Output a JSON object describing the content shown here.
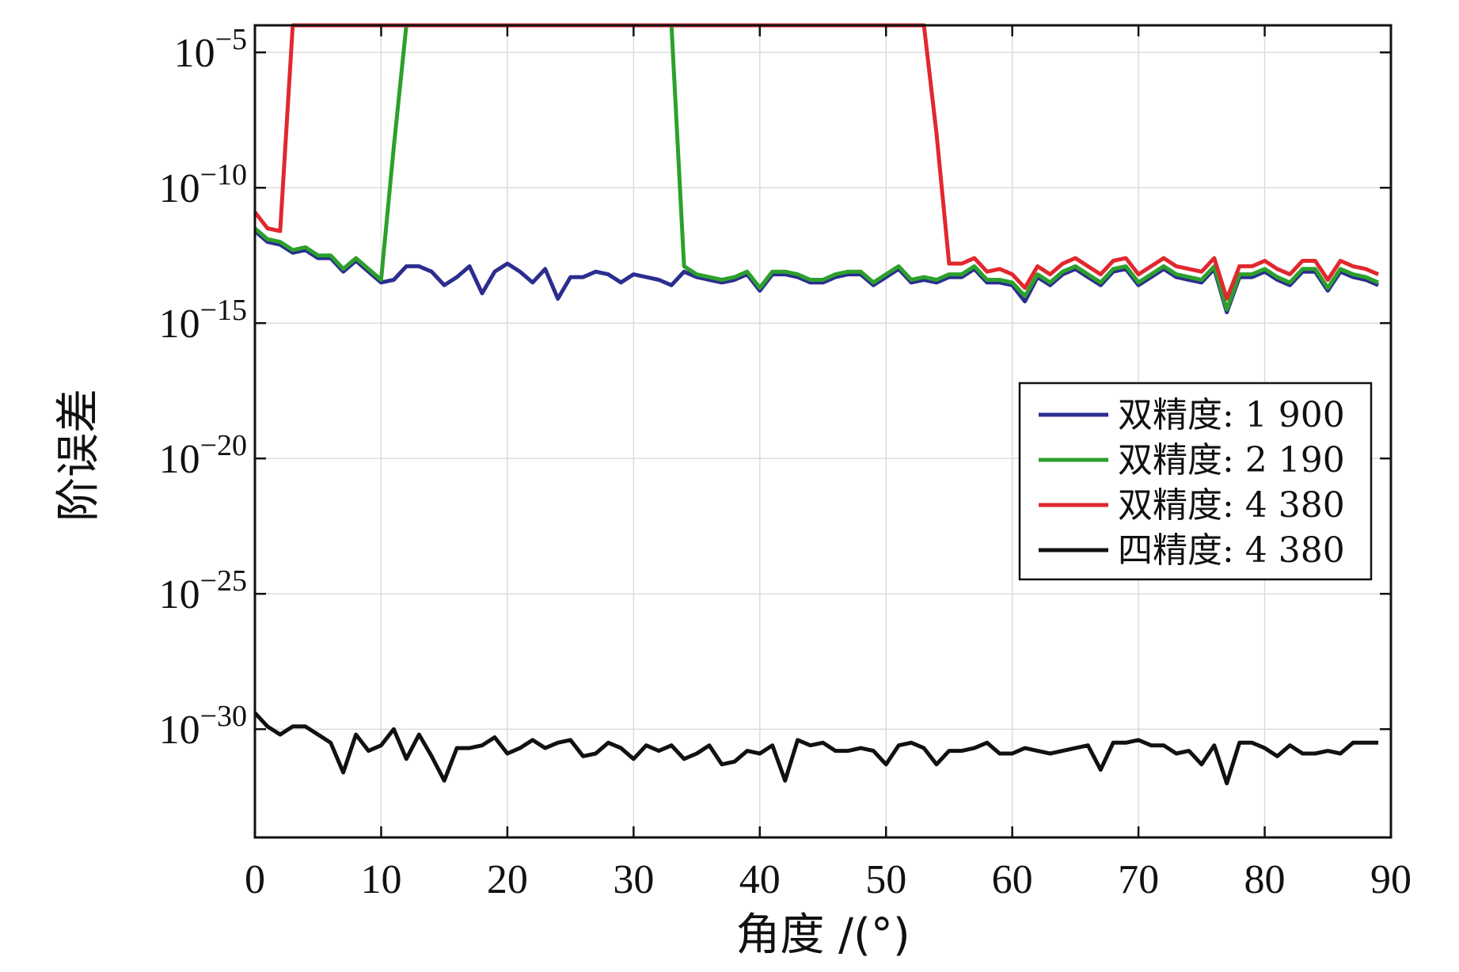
{
  "chart_data": {
    "type": "line",
    "title": "",
    "xlabel": "角度 /(°)",
    "ylabel": "阶误差",
    "xlim": [
      0,
      90
    ],
    "ylim_exp": [
      -34,
      -4
    ],
    "yscale": "log",
    "grid": true,
    "legend_position": "right-middle",
    "x_ticks": [
      0,
      10,
      20,
      30,
      40,
      50,
      60,
      70,
      80,
      90
    ],
    "y_ticks": [
      {
        "exp": -5,
        "label_base": "10",
        "label_exp": "−5"
      },
      {
        "exp": -10,
        "label_base": "10",
        "label_exp": "−10"
      },
      {
        "exp": -15,
        "label_base": "10",
        "label_exp": "−15"
      },
      {
        "exp": -20,
        "label_base": "10",
        "label_exp": "−20"
      },
      {
        "exp": -25,
        "label_base": "10",
        "label_exp": "−25"
      },
      {
        "exp": -30,
        "label_base": "10",
        "label_exp": "−30"
      }
    ],
    "x": [
      0,
      1,
      2,
      3,
      4,
      5,
      6,
      7,
      8,
      9,
      10,
      11,
      12,
      13,
      14,
      15,
      16,
      17,
      18,
      19,
      20,
      21,
      22,
      23,
      24,
      25,
      26,
      27,
      28,
      29,
      30,
      31,
      32,
      33,
      34,
      35,
      36,
      37,
      38,
      39,
      40,
      41,
      42,
      43,
      44,
      45,
      46,
      47,
      48,
      49,
      50,
      51,
      52,
      53,
      54,
      55,
      56,
      57,
      58,
      59,
      60,
      61,
      62,
      63,
      64,
      65,
      66,
      67,
      68,
      69,
      70,
      71,
      72,
      73,
      74,
      75,
      76,
      77,
      78,
      79,
      80,
      81,
      82,
      83,
      84,
      85,
      86,
      87,
      88,
      89
    ],
    "series": [
      {
        "name": "双精度: 1 900",
        "color": "#2b2d8f",
        "values_exp": [
          -11.6,
          -12.0,
          -12.1,
          -12.4,
          -12.3,
          -12.6,
          -12.6,
          -13.1,
          -12.7,
          -13.1,
          -13.5,
          -13.4,
          -12.9,
          -12.9,
          -13.1,
          -13.6,
          -13.3,
          -12.9,
          -13.9,
          -13.1,
          -12.8,
          -13.1,
          -13.5,
          -13.0,
          -14.1,
          -13.3,
          -13.3,
          -13.1,
          -13.2,
          -13.5,
          -13.2,
          -13.3,
          -13.4,
          -13.6,
          -13.1,
          -13.3,
          -13.4,
          -13.5,
          -13.4,
          -13.2,
          -13.8,
          -13.2,
          -13.2,
          -13.3,
          -13.5,
          -13.5,
          -13.3,
          -13.2,
          -13.2,
          -13.6,
          -13.3,
          -13.0,
          -13.5,
          -13.4,
          -13.5,
          -13.3,
          -13.3,
          -13.0,
          -13.5,
          -13.5,
          -13.6,
          -14.2,
          -13.3,
          -13.6,
          -13.2,
          -13.0,
          -13.3,
          -13.6,
          -13.1,
          -13.0,
          -13.6,
          -13.3,
          -13.0,
          -13.3,
          -13.4,
          -13.5,
          -13.0,
          -14.6,
          -13.3,
          -13.3,
          -13.1,
          -13.4,
          -13.6,
          -13.1,
          -13.1,
          -13.8,
          -13.1,
          -13.3,
          -13.4,
          -13.6
        ]
      },
      {
        "name": "双精度: 2 190",
        "color": "#2ca02c",
        "values_exp": [
          -11.5,
          -11.9,
          -12.0,
          -12.3,
          -12.2,
          -12.5,
          -12.5,
          -13.0,
          -12.6,
          -13.0,
          -13.4,
          -8.5,
          -4.0,
          -4.0,
          -4.0,
          -4.0,
          -4.0,
          -4.0,
          -4.0,
          -4.0,
          -4.0,
          -4.0,
          -4.0,
          -4.0,
          -4.0,
          -4.0,
          -4.0,
          -4.0,
          -4.0,
          -4.0,
          -4.0,
          -4.0,
          -4.0,
          -4.0,
          -12.9,
          -13.2,
          -13.3,
          -13.4,
          -13.3,
          -13.1,
          -13.7,
          -13.1,
          -13.1,
          -13.2,
          -13.4,
          -13.4,
          -13.2,
          -13.1,
          -13.1,
          -13.5,
          -13.2,
          -12.9,
          -13.4,
          -13.3,
          -13.4,
          -13.2,
          -13.2,
          -12.9,
          -13.4,
          -13.4,
          -13.5,
          -14.0,
          -13.2,
          -13.5,
          -13.1,
          -12.9,
          -13.2,
          -13.5,
          -13.0,
          -12.9,
          -13.5,
          -13.2,
          -12.9,
          -13.2,
          -13.3,
          -13.4,
          -12.9,
          -14.5,
          -13.2,
          -13.2,
          -13.0,
          -13.3,
          -13.5,
          -13.0,
          -13.0,
          -13.7,
          -13.0,
          -13.2,
          -13.3,
          -13.5
        ]
      },
      {
        "name": "双精度: 4 380",
        "color": "#e0282e",
        "values_exp": [
          -10.9,
          -11.5,
          -11.6,
          -4.0,
          -4.0,
          -4.0,
          -4.0,
          -4.0,
          -4.0,
          -4.0,
          -4.0,
          -4.0,
          -4.0,
          -4.0,
          -4.0,
          -4.0,
          -4.0,
          -4.0,
          -4.0,
          -4.0,
          -4.0,
          -4.0,
          -4.0,
          -4.0,
          -4.0,
          -4.0,
          -4.0,
          -4.0,
          -4.0,
          -4.0,
          -4.0,
          -4.0,
          -4.0,
          -4.0,
          -4.0,
          -4.0,
          -4.0,
          -4.0,
          -4.0,
          -4.0,
          -4.0,
          -4.0,
          -4.0,
          -4.0,
          -4.0,
          -4.0,
          -4.0,
          -4.0,
          -4.0,
          -4.0,
          -4.0,
          -4.0,
          -4.0,
          -4.0,
          -8.0,
          -12.8,
          -12.8,
          -12.6,
          -13.1,
          -13.0,
          -13.2,
          -13.7,
          -12.9,
          -13.2,
          -12.8,
          -12.6,
          -12.9,
          -13.2,
          -12.7,
          -12.6,
          -13.2,
          -12.9,
          -12.6,
          -12.9,
          -13.0,
          -13.1,
          -12.6,
          -14.1,
          -12.9,
          -12.9,
          -12.7,
          -13.0,
          -13.2,
          -12.7,
          -12.7,
          -13.4,
          -12.7,
          -12.9,
          -13.0,
          -13.2
        ]
      },
      {
        "name": "四精度: 4 380",
        "color": "#111111",
        "values_exp": [
          -29.4,
          -29.9,
          -30.2,
          -29.9,
          -29.9,
          -30.2,
          -30.5,
          -31.6,
          -30.2,
          -30.8,
          -30.6,
          -30.0,
          -31.1,
          -30.2,
          -31.0,
          -31.9,
          -30.7,
          -30.7,
          -30.6,
          -30.3,
          -30.9,
          -30.7,
          -30.4,
          -30.7,
          -30.5,
          -30.4,
          -31.0,
          -30.9,
          -30.5,
          -30.7,
          -31.1,
          -30.6,
          -30.8,
          -30.6,
          -31.1,
          -30.9,
          -30.6,
          -31.3,
          -31.2,
          -30.8,
          -30.9,
          -30.6,
          -31.9,
          -30.4,
          -30.6,
          -30.5,
          -30.8,
          -30.8,
          -30.7,
          -30.8,
          -31.3,
          -30.6,
          -30.5,
          -30.7,
          -31.3,
          -30.8,
          -30.8,
          -30.7,
          -30.5,
          -30.9,
          -30.9,
          -30.7,
          -30.8,
          -30.9,
          -30.8,
          -30.7,
          -30.6,
          -31.5,
          -30.5,
          -30.5,
          -30.4,
          -30.6,
          -30.6,
          -30.9,
          -30.8,
          -31.3,
          -30.6,
          -32.0,
          -30.5,
          -30.5,
          -30.7,
          -31.0,
          -30.6,
          -30.9,
          -30.9,
          -30.8,
          -30.9,
          -30.5,
          -30.5,
          -30.5
        ]
      }
    ]
  }
}
